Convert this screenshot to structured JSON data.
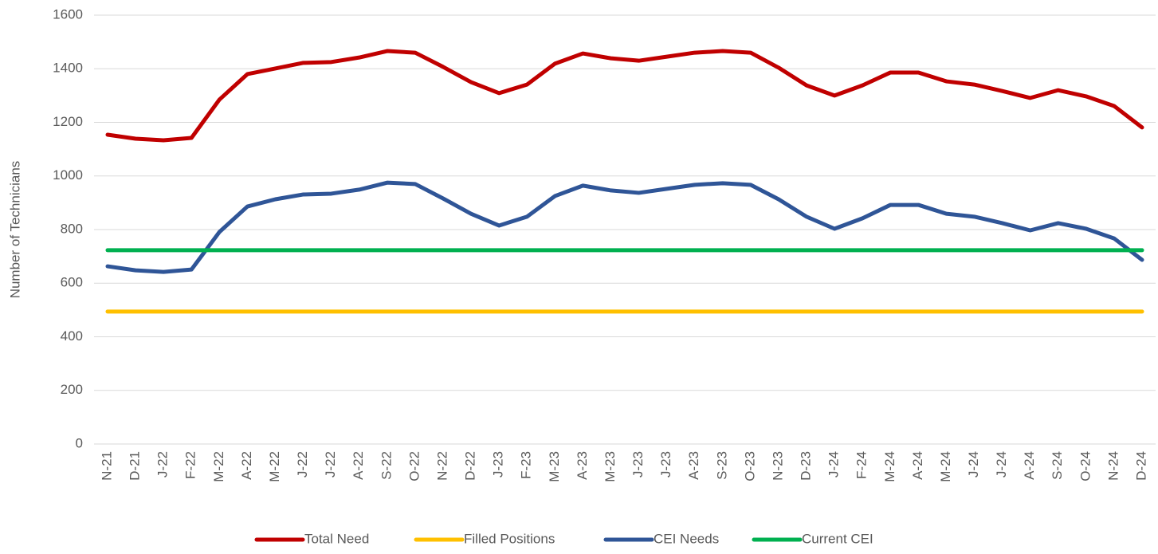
{
  "chart_data": {
    "type": "line",
    "y_label": "Number of Technicians",
    "categories": [
      "N-21",
      "D-21",
      "J-22",
      "F-22",
      "M-22",
      "A-22",
      "M-22",
      "J-22",
      "J-22",
      "A-22",
      "S-22",
      "O-22",
      "N-22",
      "D-22",
      "J-23",
      "F-23",
      "M-23",
      "A-23",
      "M-23",
      "J-23",
      "J-23",
      "A-23",
      "S-23",
      "O-23",
      "N-23",
      "D-23",
      "J-24",
      "F-24",
      "M-24",
      "A-24",
      "M-24",
      "J-24",
      "J-24",
      "A-24",
      "S-24",
      "O-24",
      "N-24",
      "D-24"
    ],
    "series": [
      {
        "name": "Total Need",
        "color": "#c00000",
        "values": [
          1154,
          1139,
          1133,
          1142,
          1285,
          1380,
          1401,
          1422,
          1425,
          1442,
          1466,
          1460,
          1407,
          1350,
          1309,
          1341,
          1419,
          1457,
          1439,
          1430,
          1445,
          1460,
          1466,
          1460,
          1404,
          1338,
          1300,
          1338,
          1386,
          1386,
          1353,
          1341,
          1317,
          1291,
          1320,
          1297,
          1261,
          1181
        ]
      },
      {
        "name": "Filled Positions",
        "color": "#ffc000",
        "values": [
          494,
          494,
          494,
          494,
          494,
          494,
          494,
          494,
          494,
          494,
          494,
          494,
          494,
          494,
          494,
          494,
          494,
          494,
          494,
          494,
          494,
          494,
          494,
          494,
          494,
          494,
          494,
          494,
          494,
          494,
          494,
          494,
          494,
          494,
          494,
          494,
          494,
          494
        ]
      },
      {
        "name": "CEI Needs",
        "color": "#2f5597",
        "values": [
          663,
          648,
          642,
          651,
          791,
          886,
          913,
          931,
          934,
          949,
          975,
          970,
          916,
          859,
          815,
          848,
          925,
          964,
          946,
          937,
          952,
          967,
          973,
          967,
          913,
          848,
          803,
          842,
          892,
          892,
          859,
          848,
          824,
          797,
          824,
          803,
          767,
          687
        ]
      },
      {
        "name": "Current CEI",
        "color": "#00b050",
        "values": [
          723,
          723,
          723,
          723,
          723,
          723,
          723,
          723,
          723,
          723,
          723,
          723,
          723,
          723,
          723,
          723,
          723,
          723,
          723,
          723,
          723,
          723,
          723,
          723,
          723,
          723,
          723,
          723,
          723,
          723,
          723,
          723,
          723,
          723,
          723,
          723,
          723,
          723
        ]
      }
    ],
    "ylim": [
      0,
      1600
    ],
    "yticks": [
      0,
      200,
      400,
      600,
      800,
      1000,
      1200,
      1400,
      1600
    ],
    "grid": true,
    "legend": "bottom"
  }
}
